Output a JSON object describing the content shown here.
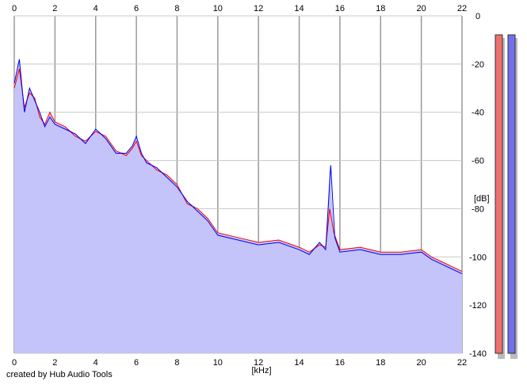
{
  "credit": "created by Hub Audio Tools",
  "chart_data": {
    "type": "area",
    "title": "",
    "xlabel": "[kHz]",
    "ylabel": "[dB]",
    "xlim": [
      0,
      22
    ],
    "ylim": [
      -140,
      0
    ],
    "x_ticks": [
      0,
      2,
      4,
      6,
      8,
      10,
      12,
      14,
      16,
      18,
      20,
      22
    ],
    "y_ticks": [
      0,
      -20,
      -40,
      -60,
      -80,
      -100,
      -120,
      -140
    ],
    "grid": true,
    "background_fill": "#c4c4fa",
    "series": [
      {
        "color": "#ff0000",
        "x": [
          0.0,
          0.25,
          0.5,
          0.75,
          1.0,
          1.25,
          1.5,
          1.75,
          2.0,
          2.5,
          3.0,
          3.5,
          4.0,
          4.5,
          5.0,
          5.5,
          5.8,
          6.0,
          6.25,
          6.5,
          7.0,
          7.5,
          8.0,
          8.5,
          9.0,
          9.5,
          10.0,
          11.0,
          12.0,
          13.0,
          14.0,
          14.5,
          15.0,
          15.3,
          15.5,
          15.7,
          16.0,
          17.0,
          18.0,
          19.0,
          20.0,
          20.5,
          21.0,
          21.5,
          22.0
        ],
        "y": [
          -30,
          -22,
          -38,
          -32,
          -34,
          -42,
          -45,
          -40,
          -44,
          -46,
          -50,
          -52,
          -48,
          -50,
          -56,
          -58,
          -55,
          -52,
          -58,
          -60,
          -64,
          -66,
          -70,
          -78,
          -80,
          -84,
          -90,
          -92,
          -94,
          -93,
          -96,
          -98,
          -95,
          -96,
          -80,
          -90,
          -97,
          -96,
          -98,
          -98,
          -97,
          -100,
          -102,
          -104,
          -106
        ]
      },
      {
        "color": "#0000ee",
        "x": [
          0.0,
          0.25,
          0.5,
          0.75,
          1.0,
          1.25,
          1.5,
          1.75,
          2.0,
          2.5,
          3.0,
          3.5,
          4.0,
          4.5,
          5.0,
          5.5,
          5.8,
          6.0,
          6.25,
          6.5,
          7.0,
          7.5,
          8.0,
          8.5,
          9.0,
          9.5,
          10.0,
          11.0,
          12.0,
          13.0,
          14.0,
          14.5,
          15.0,
          15.3,
          15.55,
          15.75,
          16.0,
          17.0,
          18.0,
          19.0,
          20.0,
          20.5,
          21.0,
          21.5,
          22.0
        ],
        "y": [
          -28,
          -18,
          -40,
          -30,
          -35,
          -40,
          -46,
          -42,
          -45,
          -47,
          -49,
          -53,
          -47,
          -51,
          -57,
          -57,
          -54,
          -50,
          -57,
          -61,
          -63,
          -67,
          -71,
          -77,
          -81,
          -85,
          -91,
          -93,
          -95,
          -94,
          -97,
          -99,
          -94,
          -97,
          -62,
          -92,
          -98,
          -97,
          -99,
          -99,
          -98,
          -101,
          -103,
          -105,
          -107
        ]
      }
    ],
    "level_meters": [
      {
        "color": "#f07070",
        "level": 1.0
      },
      {
        "color": "#7070ee",
        "level": 1.0
      }
    ]
  }
}
